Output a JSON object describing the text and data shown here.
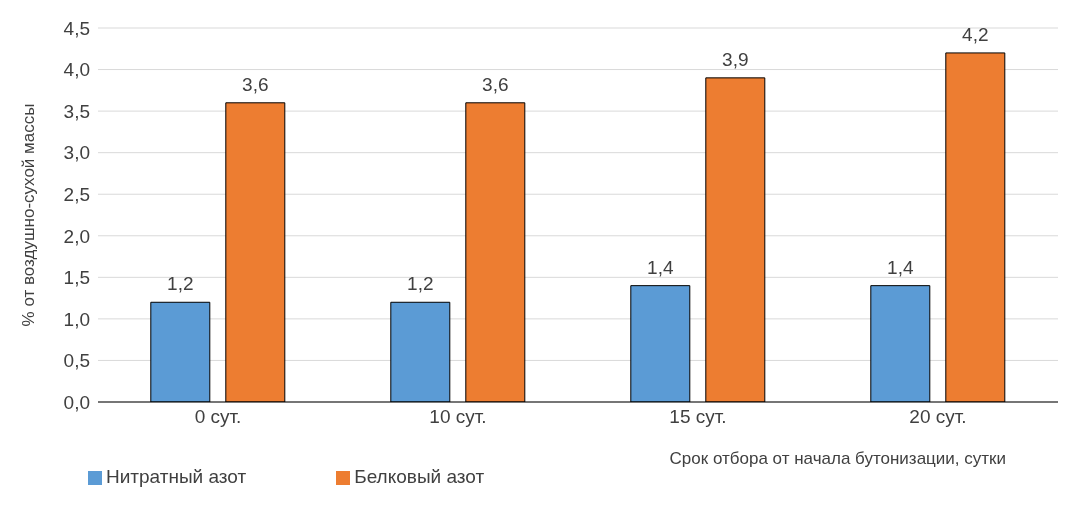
{
  "chart_data": {
    "type": "bar",
    "xlabel": "Срок отбора  от начала бутонизации,  сутки",
    "ylabel": "% от воздушно-сухой массы",
    "categories": [
      "0 сут.",
      "10 сут.",
      "15 сут.",
      "20 сут."
    ],
    "series": [
      {
        "name": "Нитратный азот",
        "color": "#5b9bd5",
        "values": [
          1.2,
          1.2,
          1.4,
          1.4
        ],
        "value_labels": [
          "1,2",
          "1,2",
          "1,4",
          "1,4"
        ]
      },
      {
        "name": "Белковый азот",
        "color": "#ed7d31",
        "values": [
          3.6,
          3.6,
          3.9,
          4.2
        ],
        "value_labels": [
          "3,6",
          "3,6",
          "3,9",
          "4,2"
        ]
      }
    ],
    "ylim": [
      0,
      4.5
    ],
    "yticks": [
      {
        "value": 0,
        "label": "0,0"
      },
      {
        "value": 0.5,
        "label": "0,5"
      },
      {
        "value": 1,
        "label": "1,0"
      },
      {
        "value": 1.5,
        "label": "1,5"
      },
      {
        "value": 2,
        "label": "2,0"
      },
      {
        "value": 2.5,
        "label": "2,5"
      },
      {
        "value": 3,
        "label": "3,0"
      },
      {
        "value": 3.5,
        "label": "3,5"
      },
      {
        "value": 4,
        "label": "4,0"
      },
      {
        "value": 4.5,
        "label": "4,5"
      }
    ],
    "grid": "y",
    "legend": "bottom left"
  }
}
